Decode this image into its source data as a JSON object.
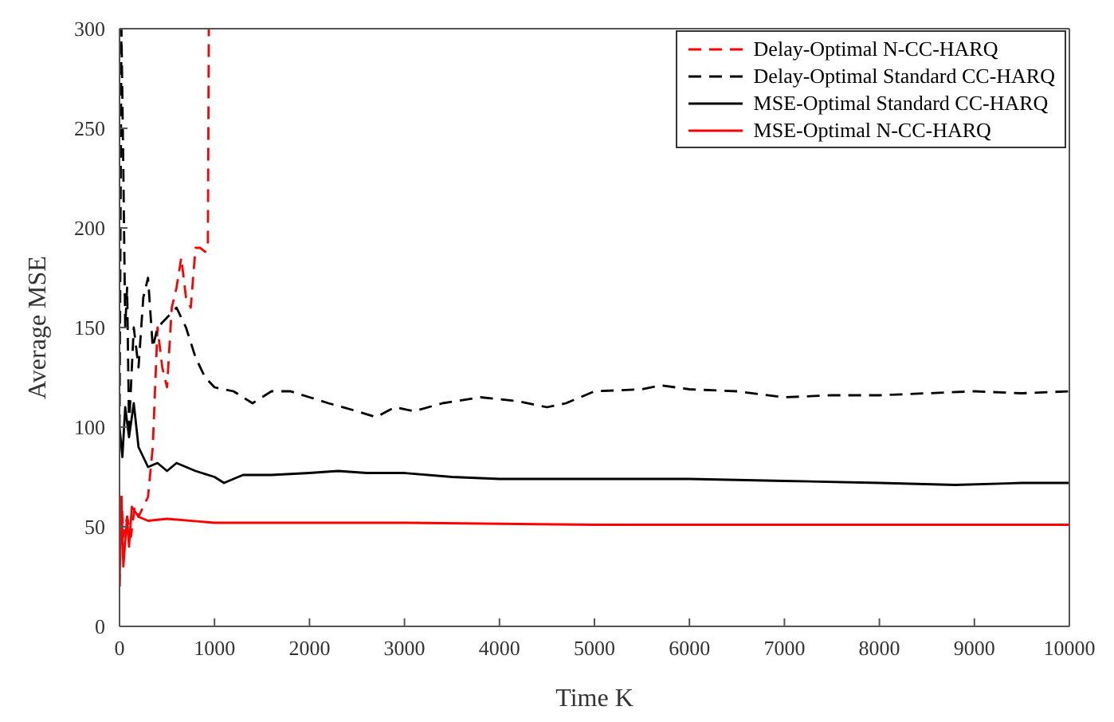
{
  "chart_data": {
    "type": "line",
    "xlabel": "Time K",
    "ylabel": "Average MSE",
    "xlim": [
      0,
      10000
    ],
    "ylim": [
      0,
      300
    ],
    "xticks": [
      0,
      1000,
      2000,
      3000,
      4000,
      5000,
      6000,
      7000,
      8000,
      9000,
      10000
    ],
    "yticks": [
      0,
      50,
      100,
      150,
      200,
      250,
      300
    ],
    "legend": "top right",
    "series": [
      {
        "name": "Delay-Optimal N-CC-HARQ",
        "color": "#ff0000",
        "line_style": "dashed",
        "x": [
          0,
          20,
          40,
          80,
          120,
          160,
          200,
          250,
          300,
          350,
          400,
          450,
          500,
          550,
          600,
          650,
          700,
          750,
          800,
          850,
          900,
          930,
          940
        ],
        "values": [
          20,
          65,
          45,
          55,
          45,
          60,
          55,
          60,
          65,
          90,
          150,
          130,
          120,
          160,
          170,
          185,
          165,
          160,
          190,
          190,
          188,
          190,
          300
        ]
      },
      {
        "name": "Delay-Optimal Standard CC-HARQ",
        "color": "#000000",
        "line_style": "dashed",
        "x": [
          0,
          20,
          40,
          60,
          80,
          100,
          150,
          200,
          250,
          300,
          350,
          400,
          500,
          600,
          700,
          800,
          900,
          1000,
          1200,
          1400,
          1600,
          1800,
          2000,
          2200,
          2500,
          2700,
          2900,
          3100,
          3400,
          3800,
          4200,
          4500,
          4700,
          5000,
          5500,
          5700,
          6000,
          6500,
          7000,
          7500,
          8000,
          8500,
          9000,
          9500,
          10000
        ],
        "values": [
          100,
          300,
          230,
          150,
          170,
          100,
          150,
          130,
          165,
          175,
          140,
          150,
          155,
          160,
          150,
          135,
          125,
          120,
          118,
          112,
          118,
          118,
          115,
          112,
          108,
          105,
          110,
          108,
          112,
          115,
          113,
          110,
          112,
          118,
          119,
          121,
          119,
          118,
          115,
          116,
          116,
          117,
          118,
          117,
          118
        ]
      },
      {
        "name": "MSE-Optimal Standard CC-HARQ",
        "color": "#000000",
        "line_style": "solid",
        "x": [
          0,
          30,
          60,
          100,
          150,
          200,
          300,
          400,
          500,
          600,
          800,
          1000,
          1100,
          1300,
          1600,
          2000,
          2300,
          2600,
          3000,
          3500,
          4000,
          5000,
          6000,
          7000,
          8000,
          8800,
          9500,
          10000
        ],
        "values": [
          100,
          85,
          110,
          95,
          112,
          90,
          80,
          82,
          78,
          82,
          78,
          75,
          72,
          76,
          76,
          77,
          78,
          77,
          77,
          75,
          74,
          74,
          74,
          73,
          72,
          71,
          72,
          72
        ]
      },
      {
        "name": "MSE-Optimal N-CC-HARQ",
        "color": "#ff0000",
        "line_style": "solid",
        "x": [
          0,
          20,
          40,
          80,
          100,
          130,
          200,
          300,
          500,
          1000,
          2000,
          3000,
          5000,
          10000
        ],
        "values": [
          20,
          65,
          30,
          55,
          40,
          60,
          55,
          53,
          54,
          52,
          52,
          52,
          51,
          51
        ]
      }
    ]
  }
}
